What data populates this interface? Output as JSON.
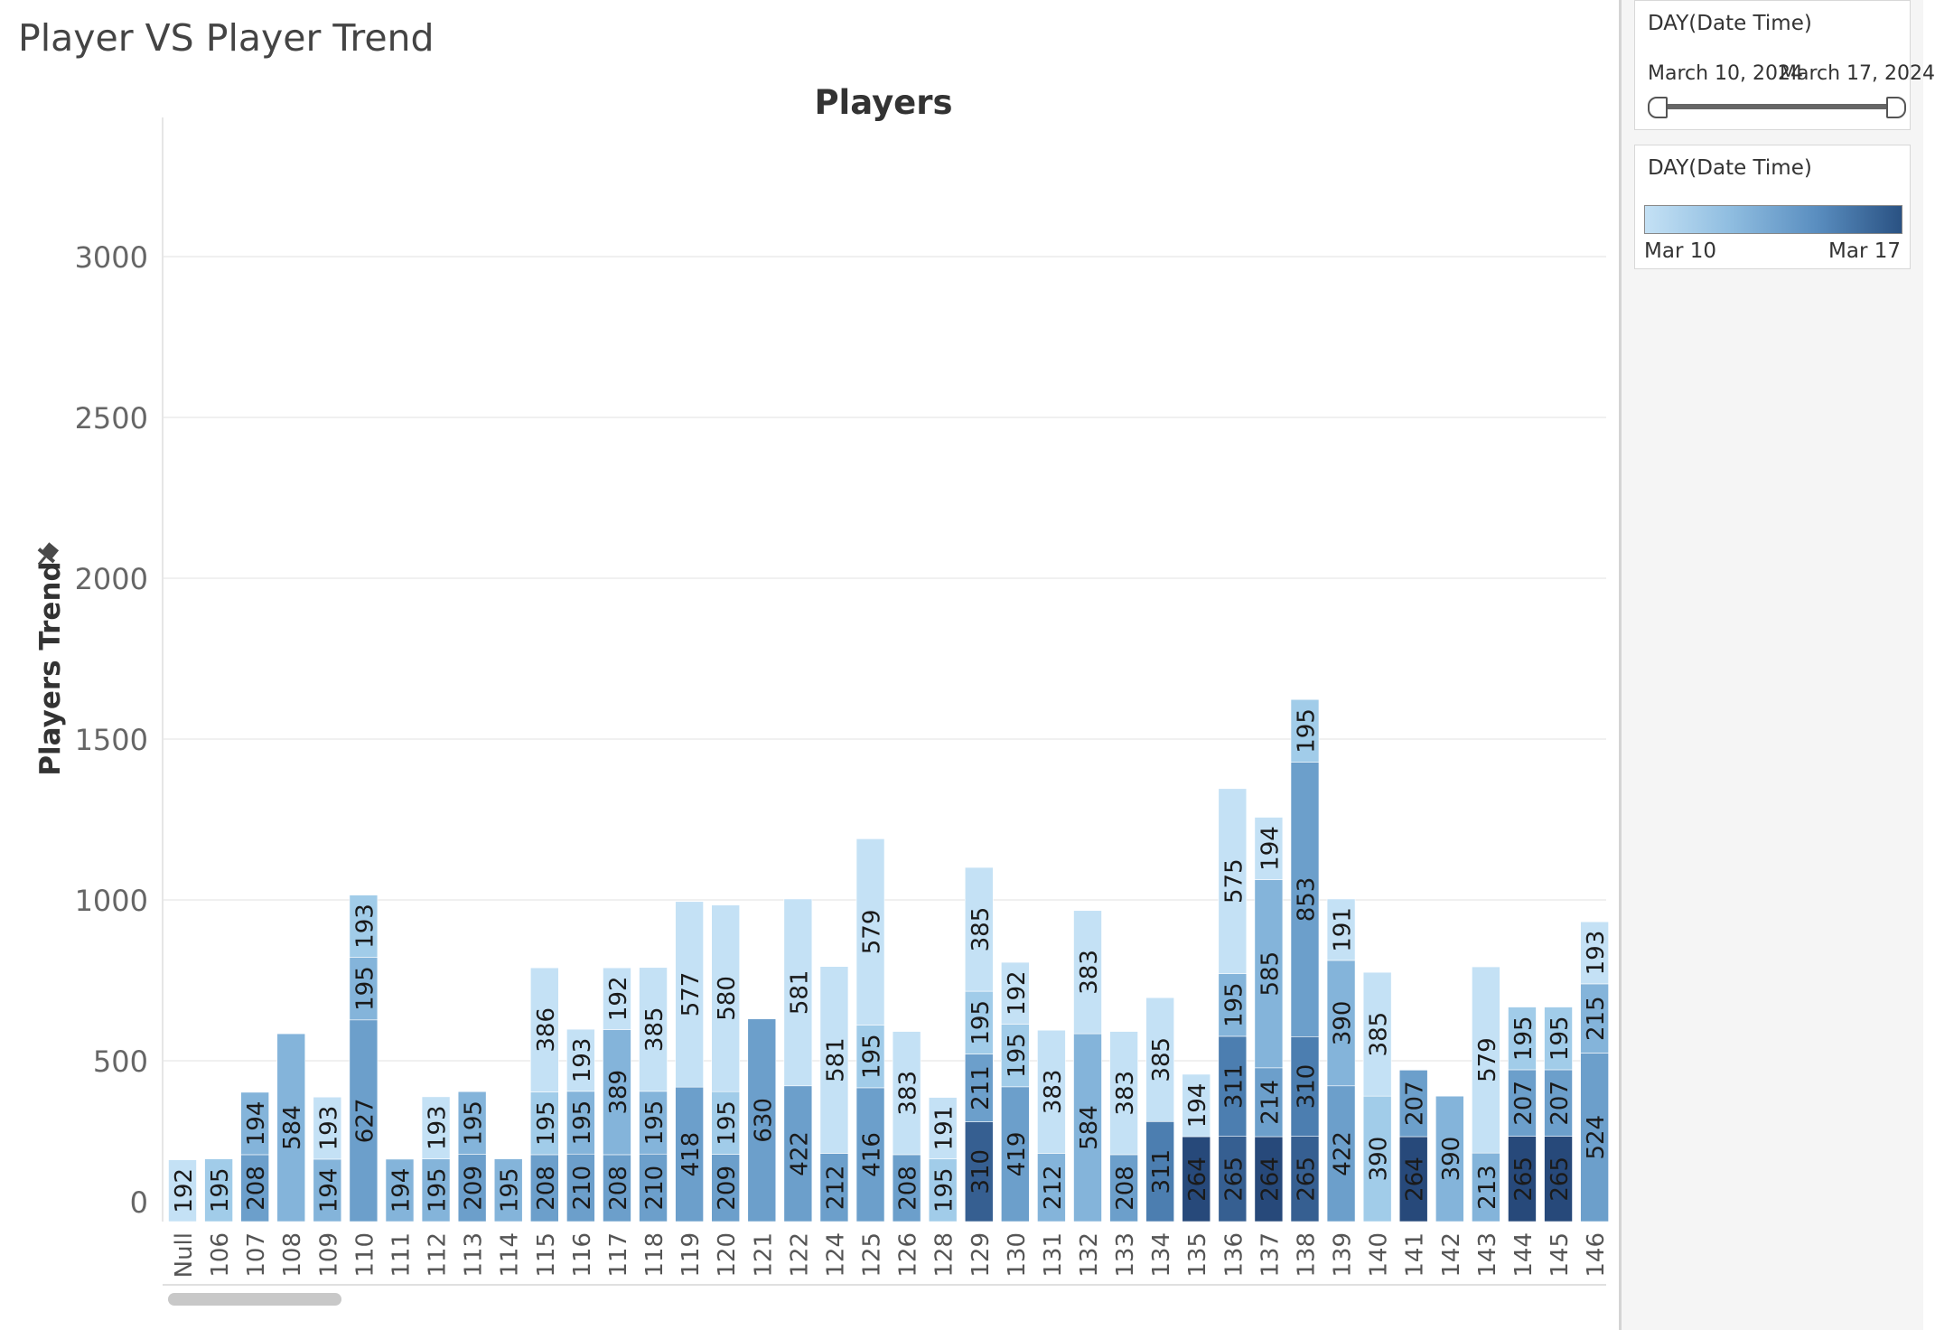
{
  "dashboard": {
    "title": "Player VS Player Trend"
  },
  "filters": {
    "date_filter": {
      "title": "DAY(Date Time)",
      "start_label": "March 10, 2024",
      "end_label": "March 17, 2024"
    },
    "color_legend": {
      "title": "DAY(Date Time)",
      "min_label": "Mar 10",
      "max_label": "Mar 17"
    }
  },
  "colors": {
    "shades": [
      "#c4e1f5",
      "#a1cce9",
      "#84b4da",
      "#6c9fcb",
      "#4c7eb0",
      "#365f91",
      "#27497a"
    ]
  },
  "chart_data": {
    "type": "bar",
    "stacked": true,
    "title": "Players",
    "ylabel": "Players Trend",
    "xlabel": "",
    "ylim": [
      0,
      3300
    ],
    "yticks": [
      0,
      500,
      1000,
      1500,
      2000,
      2500,
      3000
    ],
    "grid": true,
    "categories": [
      "Null",
      "106",
      "107",
      "108",
      "109",
      "110",
      "111",
      "112",
      "113",
      "114",
      "115",
      "116",
      "117",
      "118",
      "119",
      "120",
      "121",
      "122",
      "124",
      "125",
      "126",
      "128",
      "129",
      "130",
      "131",
      "132",
      "133",
      "134",
      "135",
      "136",
      "137",
      "138",
      "139",
      "140",
      "141",
      "142",
      "143",
      "144",
      "145",
      "146"
    ],
    "stacks": [
      [
        {
          "value": 192,
          "shade": 0
        }
      ],
      [
        {
          "value": 195,
          "shade": 1
        }
      ],
      [
        {
          "value": 208,
          "shade": 3
        },
        {
          "value": 194,
          "shade": 2
        }
      ],
      [
        {
          "value": 584,
          "shade": 2
        }
      ],
      [
        {
          "value": 194,
          "shade": 2
        },
        {
          "value": 193,
          "shade": 0
        }
      ],
      [
        {
          "value": 627,
          "shade": 3
        },
        {
          "value": 195,
          "shade": 2
        },
        {
          "value": 193,
          "shade": 1
        }
      ],
      [
        {
          "value": 194,
          "shade": 2
        }
      ],
      [
        {
          "value": 195,
          "shade": 2
        },
        {
          "value": 193,
          "shade": 0
        }
      ],
      [
        {
          "value": 209,
          "shade": 3
        },
        {
          "value": 195,
          "shade": 2
        }
      ],
      [
        {
          "value": 195,
          "shade": 2
        }
      ],
      [
        {
          "value": 208,
          "shade": 3
        },
        {
          "value": 195,
          "shade": 1
        },
        {
          "value": 386,
          "shade": 0
        }
      ],
      [
        {
          "value": 210,
          "shade": 3
        },
        {
          "value": 195,
          "shade": 2
        },
        {
          "value": 193,
          "shade": 0
        }
      ],
      [
        {
          "value": 208,
          "shade": 3
        },
        {
          "value": 389,
          "shade": 2
        },
        {
          "value": 192,
          "shade": 0
        }
      ],
      [
        {
          "value": 210,
          "shade": 3
        },
        {
          "value": 195,
          "shade": 2
        },
        {
          "value": 385,
          "shade": 0
        }
      ],
      [
        {
          "value": 418,
          "shade": 3
        },
        {
          "value": 577,
          "shade": 0
        }
      ],
      [
        {
          "value": 209,
          "shade": 3
        },
        {
          "value": 195,
          "shade": 1
        },
        {
          "value": 580,
          "shade": 0
        }
      ],
      [
        {
          "value": 630,
          "shade": 3
        }
      ],
      [
        {
          "value": 422,
          "shade": 3
        },
        {
          "value": 581,
          "shade": 0
        }
      ],
      [
        {
          "value": 212,
          "shade": 3
        },
        {
          "value": 581,
          "shade": 0
        }
      ],
      [
        {
          "value": 416,
          "shade": 3
        },
        {
          "value": 195,
          "shade": 1
        },
        {
          "value": 579,
          "shade": 0
        }
      ],
      [
        {
          "value": 208,
          "shade": 3
        },
        {
          "value": 383,
          "shade": 0
        }
      ],
      [
        {
          "value": 195,
          "shade": 1
        },
        {
          "value": 191,
          "shade": 0
        }
      ],
      [
        {
          "value": 310,
          "shade": 5
        },
        {
          "value": 211,
          "shade": 3
        },
        {
          "value": 195,
          "shade": 1
        },
        {
          "value": 385,
          "shade": 0
        }
      ],
      [
        {
          "value": 419,
          "shade": 3
        },
        {
          "value": 195,
          "shade": 1
        },
        {
          "value": 192,
          "shade": 0
        }
      ],
      [
        {
          "value": 212,
          "shade": 2
        },
        {
          "value": 383,
          "shade": 0
        }
      ],
      [
        {
          "value": 584,
          "shade": 2
        },
        {
          "value": 383,
          "shade": 0
        }
      ],
      [
        {
          "value": 208,
          "shade": 3
        },
        {
          "value": 383,
          "shade": 0
        }
      ],
      [
        {
          "value": 311,
          "shade": 4
        },
        {
          "value": 385,
          "shade": 0
        }
      ],
      [
        {
          "value": 264,
          "shade": 6
        },
        {
          "value": 194,
          "shade": 0
        }
      ],
      [
        {
          "value": 265,
          "shade": 5
        },
        {
          "value": 311,
          "shade": 4
        },
        {
          "value": 195,
          "shade": 2
        },
        {
          "value": 575,
          "shade": 0
        }
      ],
      [
        {
          "value": 264,
          "shade": 6
        },
        {
          "value": 214,
          "shade": 3
        },
        {
          "value": 585,
          "shade": 2
        },
        {
          "value": 194,
          "shade": 0
        }
      ],
      [
        {
          "value": 265,
          "shade": 5
        },
        {
          "value": 310,
          "shade": 4
        },
        {
          "value": 853,
          "shade": 3
        },
        {
          "value": 195,
          "shade": 1
        }
      ],
      [
        {
          "value": 422,
          "shade": 3
        },
        {
          "value": 390,
          "shade": 2
        },
        {
          "value": 191,
          "shade": 0
        }
      ],
      [
        {
          "value": 390,
          "shade": 1
        },
        {
          "value": 385,
          "shade": 0
        }
      ],
      [
        {
          "value": 264,
          "shade": 6
        },
        {
          "value": 207,
          "shade": 3
        }
      ],
      [
        {
          "value": 390,
          "shade": 2
        }
      ],
      [
        {
          "value": 213,
          "shade": 2
        },
        {
          "value": 579,
          "shade": 0
        }
      ],
      [
        {
          "value": 265,
          "shade": 6
        },
        {
          "value": 207,
          "shade": 3
        },
        {
          "value": 195,
          "shade": 1
        }
      ],
      [
        {
          "value": 265,
          "shade": 6
        },
        {
          "value": 207,
          "shade": 3
        },
        {
          "value": 195,
          "shade": 1
        }
      ],
      [
        {
          "value": 524,
          "shade": 3
        },
        {
          "value": 215,
          "shade": 2
        },
        {
          "value": 193,
          "shade": 0
        }
      ]
    ]
  }
}
